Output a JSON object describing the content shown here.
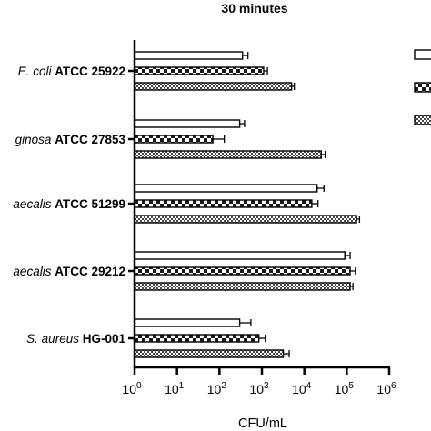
{
  "chart_data": {
    "type": "bar",
    "orientation": "horizontal",
    "title": "30 minutes",
    "xlabel": "CFU/mL",
    "ylabel": "",
    "xscale": "log",
    "xlim": [
      1,
      1000000
    ],
    "x_tick_labels": [
      {
        "base": "10",
        "exp": "0"
      },
      {
        "base": "10",
        "exp": "1"
      },
      {
        "base": "10",
        "exp": "2"
      },
      {
        "base": "10",
        "exp": "3"
      },
      {
        "base": "10",
        "exp": "4"
      },
      {
        "base": "10",
        "exp": "5"
      },
      {
        "base": "10",
        "exp": "6"
      }
    ],
    "grid": false,
    "legend": "right (labels cropped)",
    "categories": [
      {
        "italic": "E. coli",
        "rest": "ATCC 25922"
      },
      {
        "italic": "ginosa",
        "rest": "ATCC 27853"
      },
      {
        "italic": "aecalis",
        "rest": "ATCC 51299"
      },
      {
        "italic": "aecalis",
        "rest": "ATCC 29212"
      },
      {
        "italic": "S. aureus",
        "rest": "HG-001"
      }
    ],
    "series": [
      {
        "pattern": "open",
        "values": [
          350,
          300,
          20000,
          90000,
          300
        ],
        "errors": [
          120,
          90,
          9000,
          30000,
          250
        ]
      },
      {
        "pattern": "checker",
        "values": [
          1100,
          70,
          15000,
          120000,
          850
        ],
        "errors": [
          250,
          60,
          6000,
          40000,
          350
        ]
      },
      {
        "pattern": "fine-checker",
        "values": [
          5000,
          25000,
          170000,
          120000,
          3200
        ],
        "errors": [
          800,
          6000,
          30000,
          20000,
          1200
        ]
      }
    ]
  },
  "colors": {
    "axis": "#000000",
    "bar_outline": "#000000",
    "pattern_dark": "#1a1a1a",
    "pattern_light": "#ffffff"
  }
}
